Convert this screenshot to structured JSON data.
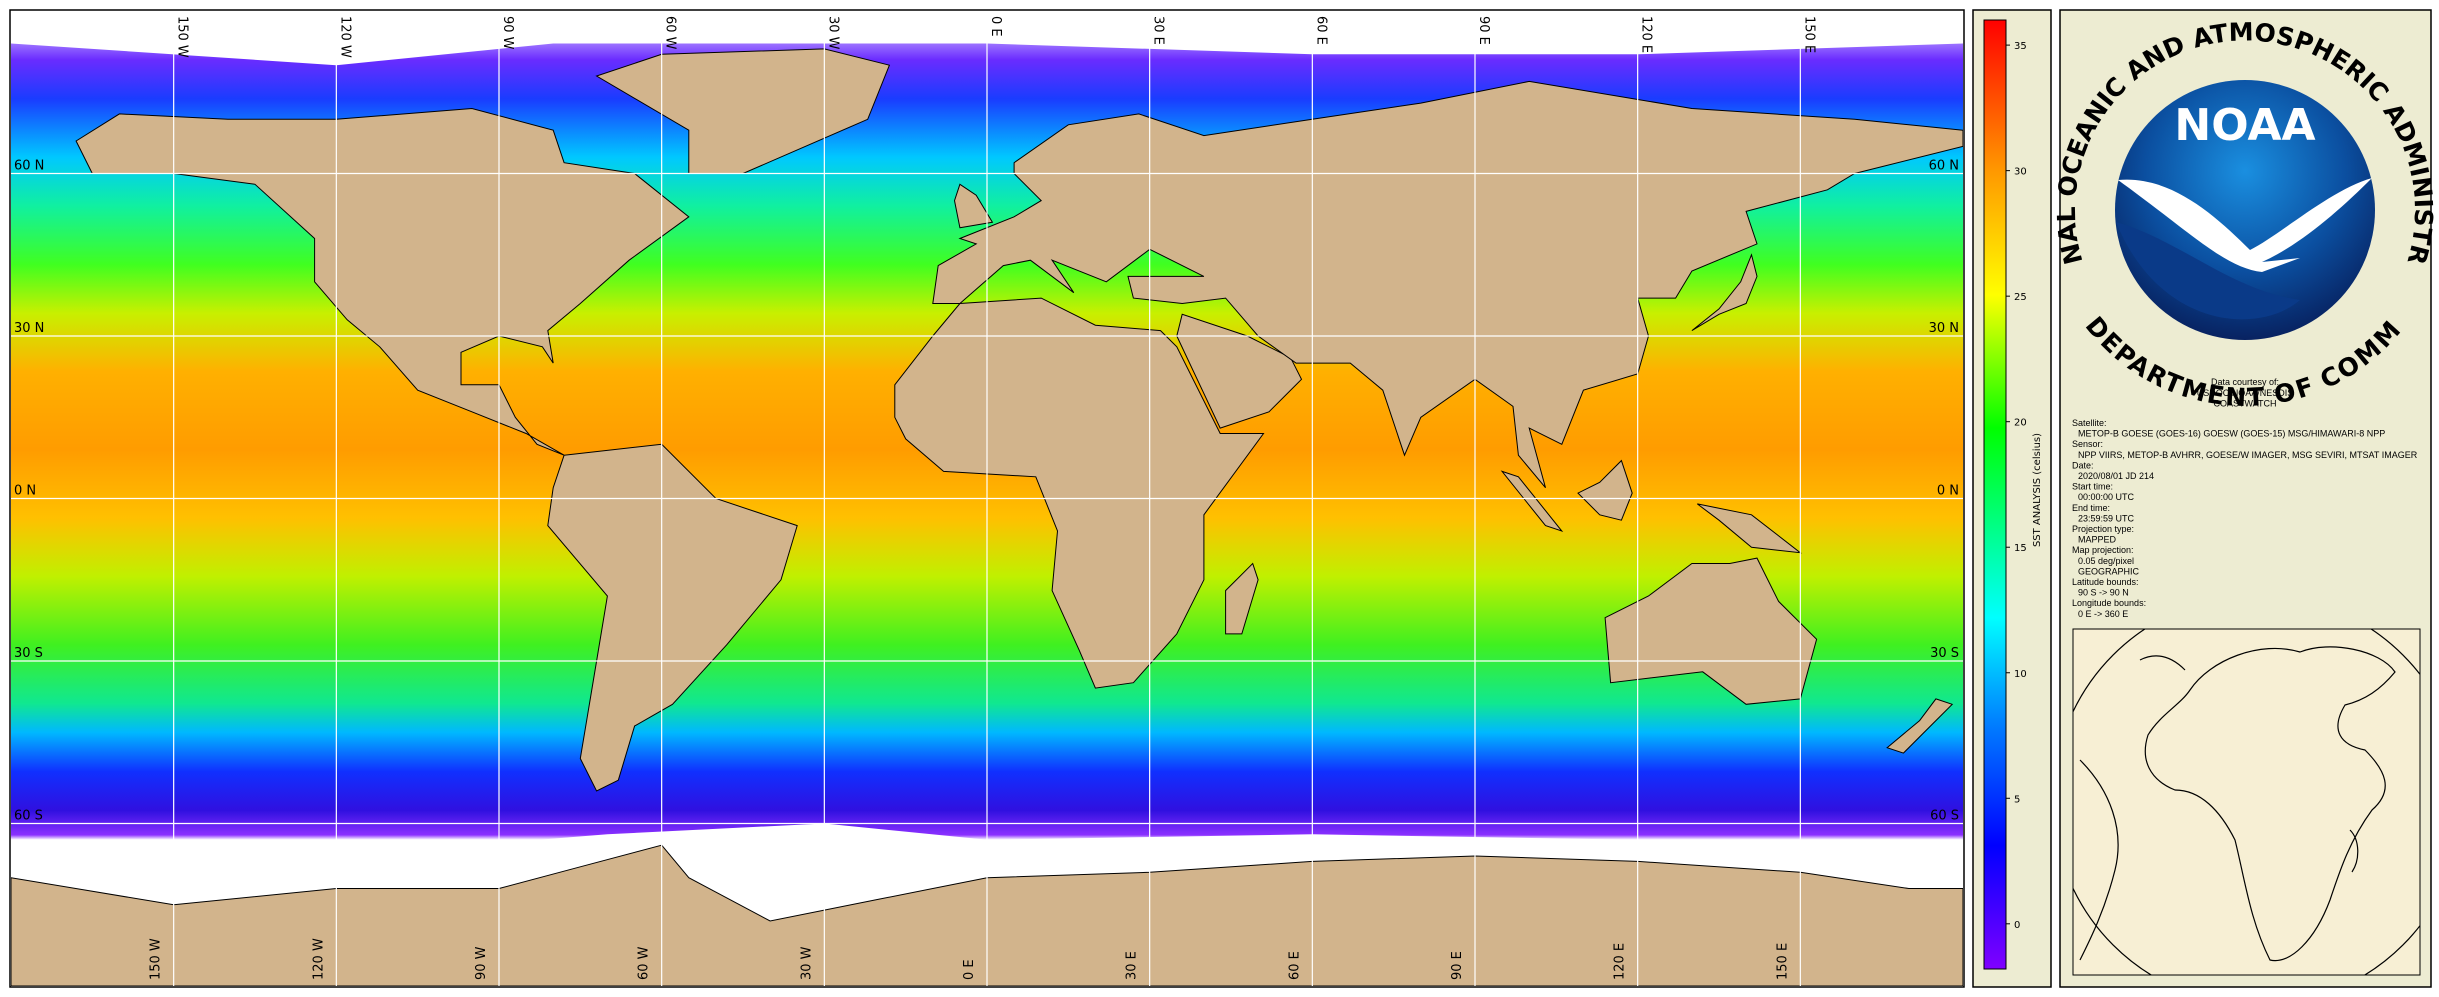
{
  "map": {
    "lonlim": [
      -180,
      180
    ],
    "latlim": [
      -90,
      90
    ],
    "grid": true,
    "lon_ticks": [
      {
        "value": -150,
        "label": "150 W"
      },
      {
        "value": -120,
        "label": "120 W"
      },
      {
        "value": -90,
        "label": "90 W"
      },
      {
        "value": -60,
        "label": "60 W"
      },
      {
        "value": -30,
        "label": "30 W"
      },
      {
        "value": 0,
        "label": "0 E"
      },
      {
        "value": 30,
        "label": "30 E"
      },
      {
        "value": 60,
        "label": "60 E"
      },
      {
        "value": 90,
        "label": "90 E"
      },
      {
        "value": 120,
        "label": "120 E"
      },
      {
        "value": 150,
        "label": "150 E"
      }
    ],
    "lat_ticks": [
      {
        "value": 60,
        "label": "60 N"
      },
      {
        "value": 30,
        "label": "30 N"
      },
      {
        "value": 0,
        "label": "0 N"
      },
      {
        "value": -30,
        "label": "30 S"
      },
      {
        "value": -60,
        "label": "60 S"
      }
    ]
  },
  "colorbar": {
    "title": "SST ANALYSIS (celsius)",
    "lim": [
      -1.8,
      36
    ],
    "ticks": [
      0,
      5,
      10,
      15,
      20,
      25,
      30,
      35
    ]
  },
  "logo": {
    "name": "NOAA",
    "ring_top": "NATIONAL OCEANIC AND ATMOSPHERIC ADMINISTRATION",
    "ring_bottom": "U.S. DEPARTMENT OF COMMERCE"
  },
  "credits": {
    "heading": "Data courtesy of:",
    "lines": [
      "USDOC/NOAA/NESDIS",
      "COASTWATCH"
    ]
  },
  "metadata": [
    {
      "label": "Satellite:",
      "values": [
        "METOP-B GOESE (GOES-16) GOESW (GOES-15) MSG/HIMAWARI-8 NPP"
      ]
    },
    {
      "label": "Sensor:",
      "values": [
        "NPP VIIRS, METOP-B AVHRR, GOESE/W IMAGER, MSG SEVIRI, MTSAT IMAGER"
      ]
    },
    {
      "label": "Date:",
      "values": [
        "2020/08/01 JD 214"
      ]
    },
    {
      "label": "Start time:",
      "values": [
        "00:00:00 UTC"
      ]
    },
    {
      "label": "End time:",
      "values": [
        "23:59:59 UTC"
      ]
    },
    {
      "label": "Projection type:",
      "values": [
        "MAPPED"
      ]
    },
    {
      "label": "Map projection:",
      "values": [
        "0.05 deg/pixel",
        "GEOGRAPHIC"
      ]
    },
    {
      "label": "Latitude bounds:",
      "values": [
        "90 S -> 90 N"
      ]
    },
    {
      "label": "Longitude bounds:",
      "values": [
        "0 E -> 360 E"
      ]
    }
  ]
}
